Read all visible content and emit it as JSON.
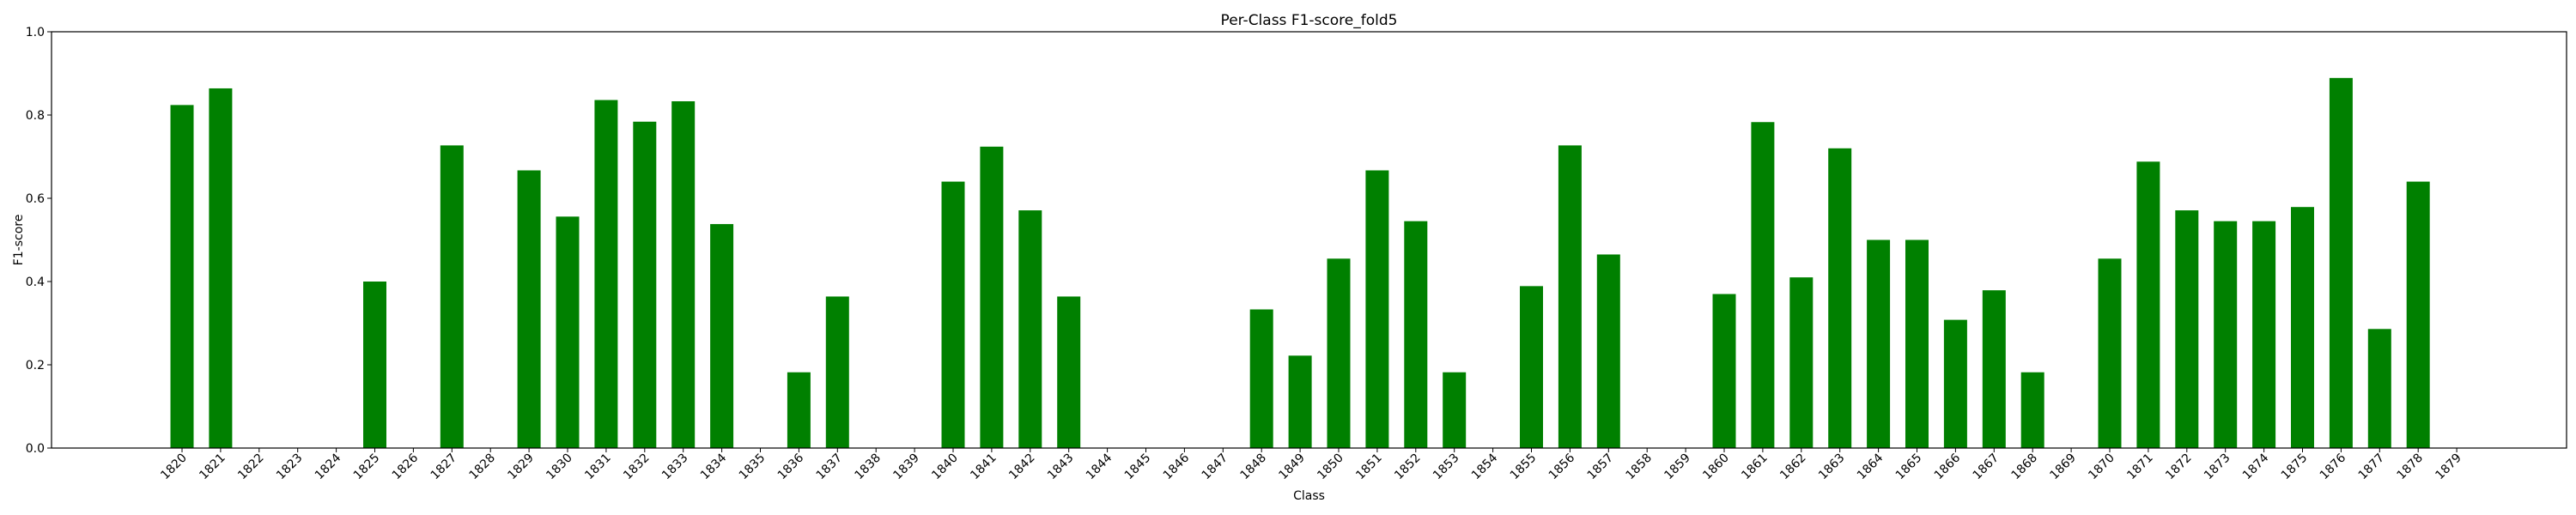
{
  "chart_data": {
    "type": "bar",
    "title": "Per-Class F1-score_fold5",
    "xlabel": "Class",
    "ylabel": "F1-score",
    "ylim": [
      0,
      1.0
    ],
    "yticks": [
      "0.0",
      "0.2",
      "0.4",
      "0.6",
      "0.8",
      "1.0"
    ],
    "bar_color": "#008000",
    "grid": false,
    "categories": [
      "1820",
      "1821",
      "1822",
      "1823",
      "1824",
      "1825",
      "1826",
      "1827",
      "1828",
      "1829",
      "1830",
      "1831",
      "1832",
      "1833",
      "1834",
      "1835",
      "1836",
      "1837",
      "1838",
      "1839",
      "1840",
      "1841",
      "1842",
      "1843",
      "1844",
      "1845",
      "1846",
      "1847",
      "1848",
      "1849",
      "1850",
      "1851",
      "1852",
      "1853",
      "1854",
      "1855",
      "1856",
      "1857",
      "1858",
      "1859",
      "1860",
      "1861",
      "1862",
      "1863",
      "1864",
      "1865",
      "1866",
      "1867",
      "1868",
      "1869",
      "1870",
      "1871",
      "1872",
      "1873",
      "1874",
      "1875",
      "1876",
      "1877",
      "1878",
      "1879"
    ],
    "values": [
      0.824,
      0.864,
      0,
      0,
      0,
      0.4,
      0,
      0.727,
      0,
      0.667,
      0.556,
      0.836,
      0.784,
      0.833,
      0.538,
      0,
      0.182,
      0.364,
      0,
      0,
      0.64,
      0.724,
      0.571,
      0.364,
      0,
      0,
      0,
      0,
      0.333,
      0.222,
      0.455,
      0.667,
      0.545,
      0.182,
      0,
      0.389,
      0.727,
      0.465,
      0,
      0,
      0.37,
      0.783,
      0.41,
      0.72,
      0.5,
      0.5,
      0.308,
      0.379,
      0.182,
      0,
      0.455,
      0.688,
      0.571,
      0.545,
      0.545,
      0.579,
      0.889,
      0.286,
      0.64,
      0
    ]
  }
}
